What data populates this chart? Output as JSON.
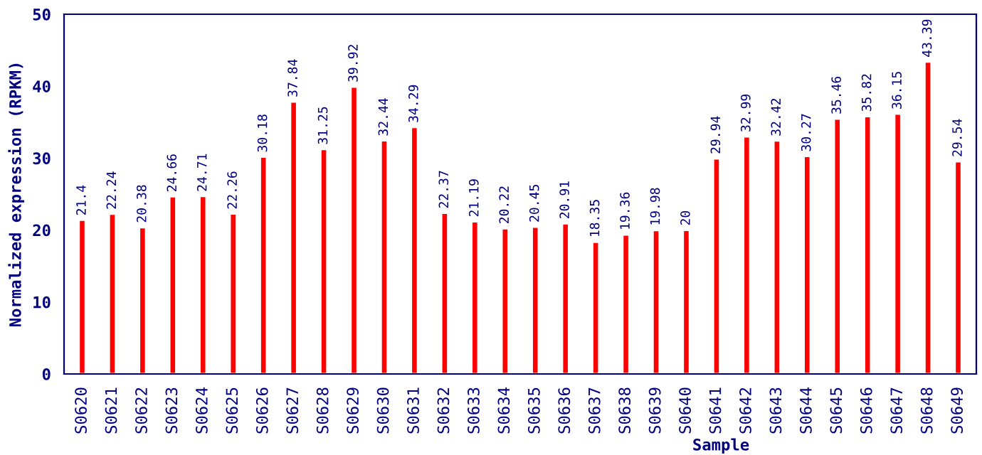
{
  "chart_data": {
    "type": "bar",
    "xlabel": "Sample",
    "ylabel": "Normalized expression (RPKM)",
    "categories": [
      "S0620",
      "S0621",
      "S0622",
      "S0623",
      "S0624",
      "S0625",
      "S0626",
      "S0627",
      "S0628",
      "S0629",
      "S0630",
      "S0631",
      "S0632",
      "S0633",
      "S0634",
      "S0635",
      "S0636",
      "S0637",
      "S0638",
      "S0639",
      "S0640",
      "S0641",
      "S0642",
      "S0643",
      "S0644",
      "S0645",
      "S0646",
      "S0647",
      "S0648",
      "S0649"
    ],
    "values": [
      21.4,
      22.24,
      20.38,
      24.66,
      24.71,
      22.26,
      30.18,
      37.84,
      31.25,
      39.92,
      32.44,
      34.29,
      22.37,
      21.19,
      20.22,
      20.45,
      20.91,
      18.35,
      19.36,
      19.98,
      20,
      29.94,
      32.99,
      32.42,
      30.27,
      35.46,
      35.82,
      36.15,
      43.39,
      29.54
    ],
    "color": "#ff0000",
    "data_labels": true,
    "ylim": [
      0,
      50
    ],
    "yticks": [
      0,
      10,
      20,
      30,
      40,
      50
    ],
    "grid": false
  }
}
